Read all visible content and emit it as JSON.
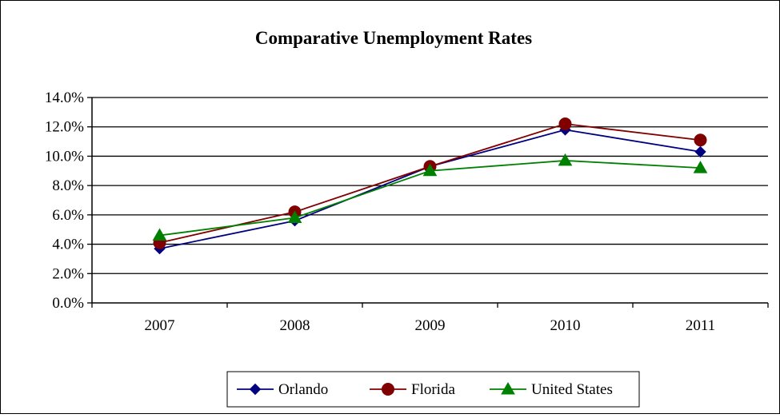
{
  "chart_data": {
    "type": "line",
    "title": "Comparative Unemployment Rates",
    "categories": [
      "2007",
      "2008",
      "2009",
      "2010",
      "2011"
    ],
    "ylim": [
      0,
      14
    ],
    "yticks": [
      "0.0%",
      "2.0%",
      "4.0%",
      "6.0%",
      "8.0%",
      "10.0%",
      "12.0%",
      "14.0%"
    ],
    "grid": true,
    "legend_position": "bottom",
    "series": [
      {
        "name": "Orlando",
        "color": "#000080",
        "marker": "diamond",
        "values": [
          3.7,
          5.6,
          9.3,
          11.8,
          10.3
        ]
      },
      {
        "name": "Florida",
        "color": "#800000",
        "marker": "circle",
        "values": [
          4.1,
          6.2,
          9.3,
          12.2,
          11.1
        ]
      },
      {
        "name": "United States",
        "color": "#008000",
        "marker": "triangle",
        "values": [
          4.6,
          5.8,
          9.0,
          9.7,
          9.2
        ]
      }
    ]
  }
}
